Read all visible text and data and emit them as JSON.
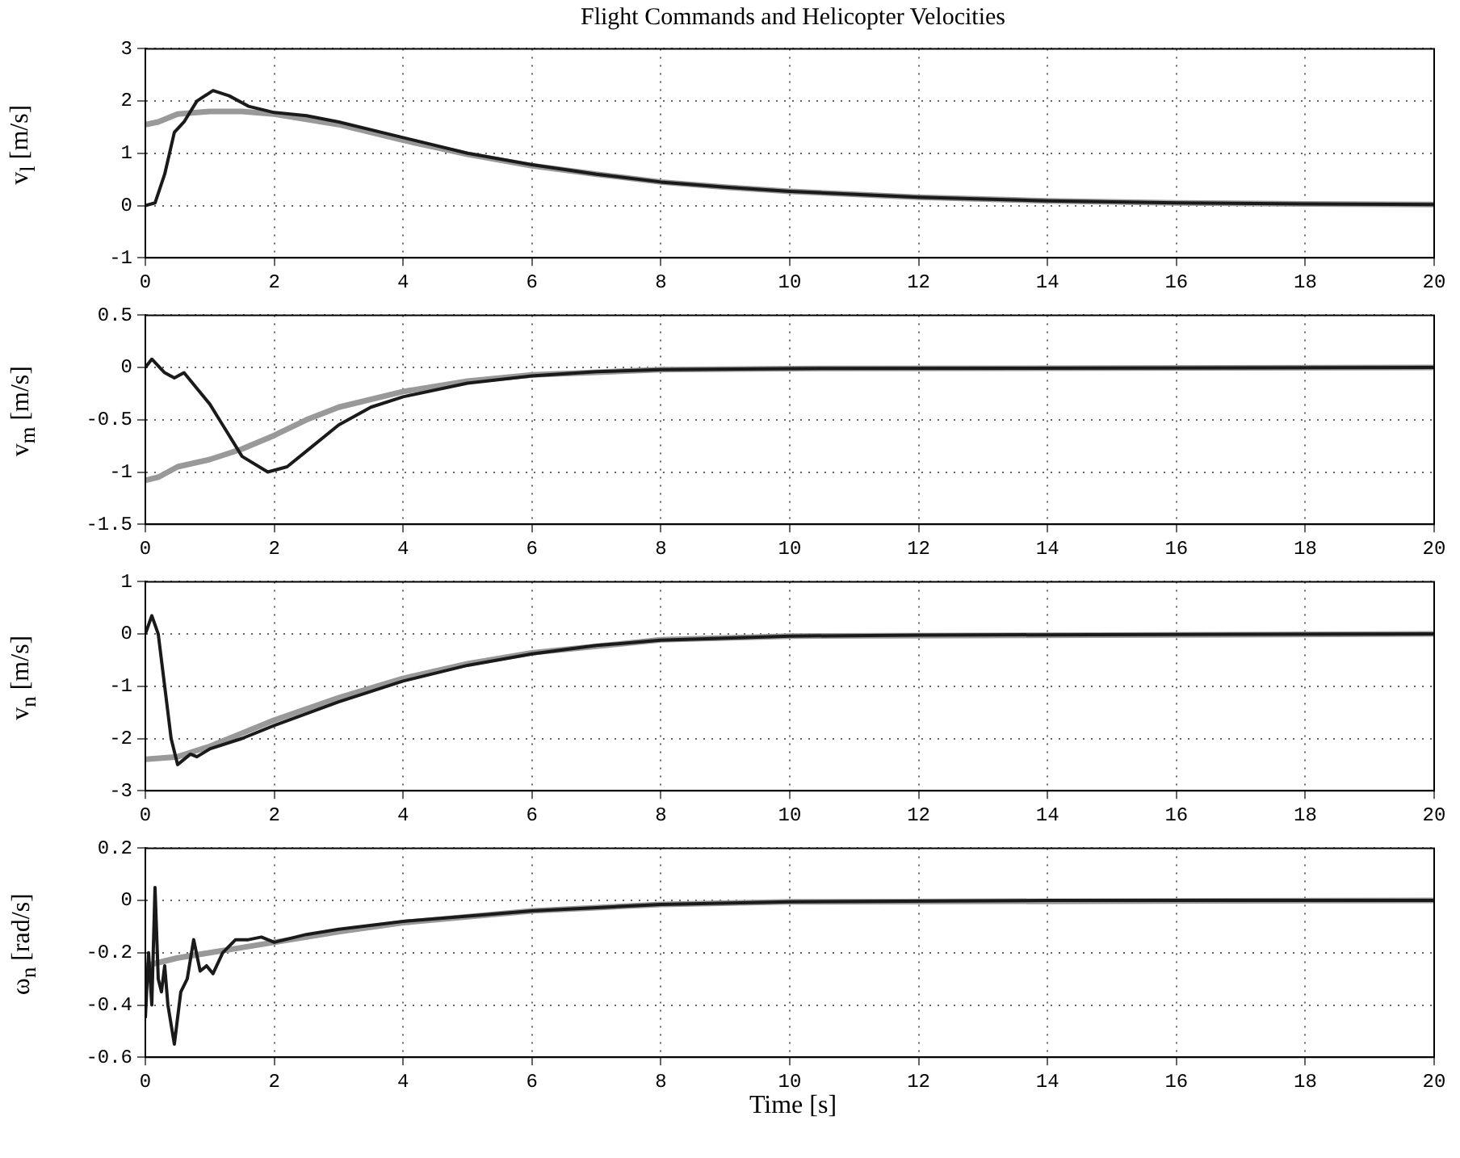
{
  "chart_data": [
    {
      "type": "line",
      "title": "Flight Commands and Helicopter Velocities",
      "ylabel": "v$_{l}$ [m/s]",
      "xlim": [
        0,
        20
      ],
      "xticks": [
        0,
        2,
        4,
        6,
        8,
        10,
        12,
        14,
        16,
        18,
        20
      ],
      "ylim": [
        -1,
        3
      ],
      "yticks": [
        -1,
        0,
        1,
        2,
        3
      ],
      "grid": true,
      "marker": "none",
      "series": [
        {
          "color": "#999999",
          "x": [
            0,
            0.2,
            0.5,
            1,
            1.5,
            2,
            3,
            4,
            5,
            6,
            7,
            8,
            9,
            10,
            12,
            14,
            16,
            18,
            20
          ],
          "values": [
            1.55,
            1.6,
            1.75,
            1.8,
            1.8,
            1.75,
            1.55,
            1.25,
            0.98,
            0.76,
            0.6,
            0.45,
            0.35,
            0.27,
            0.16,
            0.09,
            0.05,
            0.03,
            0.02
          ]
        },
        {
          "color": "#1a1a1a",
          "x": [
            0,
            0.15,
            0.3,
            0.45,
            0.6,
            0.8,
            1.05,
            1.3,
            1.6,
            2,
            2.5,
            3,
            4,
            5,
            6,
            7,
            8,
            9,
            10,
            12,
            14,
            16,
            18,
            20
          ],
          "values": [
            0,
            0.05,
            0.6,
            1.4,
            1.6,
            2,
            2.2,
            2.1,
            1.9,
            1.78,
            1.72,
            1.6,
            1.3,
            1,
            0.78,
            0.6,
            0.45,
            0.35,
            0.27,
            0.16,
            0.09,
            0.05,
            0.03,
            0.02
          ]
        }
      ]
    },
    {
      "type": "line",
      "ylabel": "v$_{m}$ [m/s]",
      "xlim": [
        0,
        20
      ],
      "xticks": [
        0,
        2,
        4,
        6,
        8,
        10,
        12,
        14,
        16,
        18,
        20
      ],
      "ylim": [
        -1.5,
        0.5
      ],
      "yticks": [
        -1.5,
        -1,
        -0.5,
        0,
        0.5
      ],
      "grid": true,
      "marker": "none",
      "series": [
        {
          "color": "#999999",
          "x": [
            0,
            0.2,
            0.5,
            1,
            1.5,
            2,
            2.5,
            3,
            4,
            5,
            6,
            8,
            10,
            20
          ],
          "values": [
            -1.08,
            -1.05,
            -0.95,
            -0.88,
            -0.78,
            -0.65,
            -0.5,
            -0.38,
            -0.23,
            -0.13,
            -0.07,
            -0.02,
            -0.01,
            0
          ]
        },
        {
          "color": "#1a1a1a",
          "x": [
            0,
            0.1,
            0.3,
            0.45,
            0.6,
            0.8,
            1,
            1.2,
            1.5,
            1.9,
            2.2,
            2.5,
            3,
            3.5,
            4,
            5,
            6,
            7,
            8,
            10,
            20
          ],
          "values": [
            0,
            0.08,
            -0.05,
            -0.1,
            -0.05,
            -0.2,
            -0.35,
            -0.55,
            -0.85,
            -1,
            -0.95,
            -0.8,
            -0.55,
            -0.38,
            -0.28,
            -0.15,
            -0.08,
            -0.04,
            -0.02,
            -0.01,
            0
          ]
        }
      ]
    },
    {
      "type": "line",
      "ylabel": "v$_{n}$ [m/s]",
      "xlim": [
        0,
        20
      ],
      "xticks": [
        0,
        2,
        4,
        6,
        8,
        10,
        12,
        14,
        16,
        18,
        20
      ],
      "ylim": [
        -3,
        1
      ],
      "yticks": [
        -3,
        -2,
        -1,
        0,
        1
      ],
      "grid": true,
      "marker": "none",
      "series": [
        {
          "color": "#999999",
          "x": [
            0,
            0.5,
            1,
            2,
            3,
            4,
            5,
            6,
            8,
            10,
            20
          ],
          "values": [
            -2.4,
            -2.35,
            -2.15,
            -1.65,
            -1.22,
            -0.85,
            -0.57,
            -0.36,
            -0.11,
            -0.04,
            0
          ]
        },
        {
          "color": "#1a1a1a",
          "x": [
            0,
            0.1,
            0.2,
            0.3,
            0.4,
            0.5,
            0.7,
            0.8,
            1,
            1.5,
            2,
            3,
            4,
            5,
            6,
            7,
            8,
            10,
            12,
            20
          ],
          "values": [
            0,
            0.35,
            0,
            -1,
            -2,
            -2.5,
            -2.3,
            -2.35,
            -2.2,
            -2,
            -1.75,
            -1.3,
            -0.9,
            -0.6,
            -0.38,
            -0.22,
            -0.12,
            -0.04,
            -0.02,
            0
          ]
        }
      ]
    },
    {
      "type": "line",
      "ylabel": "ω$_{n}$ [rad/s]",
      "xlabel": "Time [s]",
      "xlim": [
        0,
        20
      ],
      "xticks": [
        0,
        2,
        4,
        6,
        8,
        10,
        12,
        14,
        16,
        18,
        20
      ],
      "ylim": [
        -0.6,
        0.2
      ],
      "yticks": [
        -0.6,
        -0.4,
        -0.2,
        0,
        0.2
      ],
      "grid": true,
      "marker": "none",
      "series": [
        {
          "color": "#999999",
          "x": [
            0,
            0.5,
            1,
            1.5,
            2,
            3,
            4,
            6,
            8,
            10,
            20
          ],
          "values": [
            -0.25,
            -0.22,
            -0.2,
            -0.18,
            -0.16,
            -0.12,
            -0.085,
            -0.04,
            -0.015,
            -0.005,
            0
          ]
        },
        {
          "color": "#1a1a1a",
          "x": [
            0,
            0.05,
            0.1,
            0.15,
            0.2,
            0.25,
            0.3,
            0.35,
            0.45,
            0.55,
            0.65,
            0.75,
            0.85,
            0.95,
            1.05,
            1.2,
            1.4,
            1.6,
            1.8,
            2,
            2.5,
            3,
            4,
            5,
            6,
            8,
            10,
            14,
            20
          ],
          "values": [
            -0.45,
            -0.2,
            -0.4,
            0.05,
            -0.3,
            -0.35,
            -0.25,
            -0.4,
            -0.55,
            -0.35,
            -0.3,
            -0.15,
            -0.27,
            -0.25,
            -0.28,
            -0.2,
            -0.15,
            -0.15,
            -0.14,
            -0.16,
            -0.13,
            -0.11,
            -0.08,
            -0.06,
            -0.04,
            -0.015,
            -0.005,
            0,
            0
          ]
        }
      ]
    }
  ]
}
